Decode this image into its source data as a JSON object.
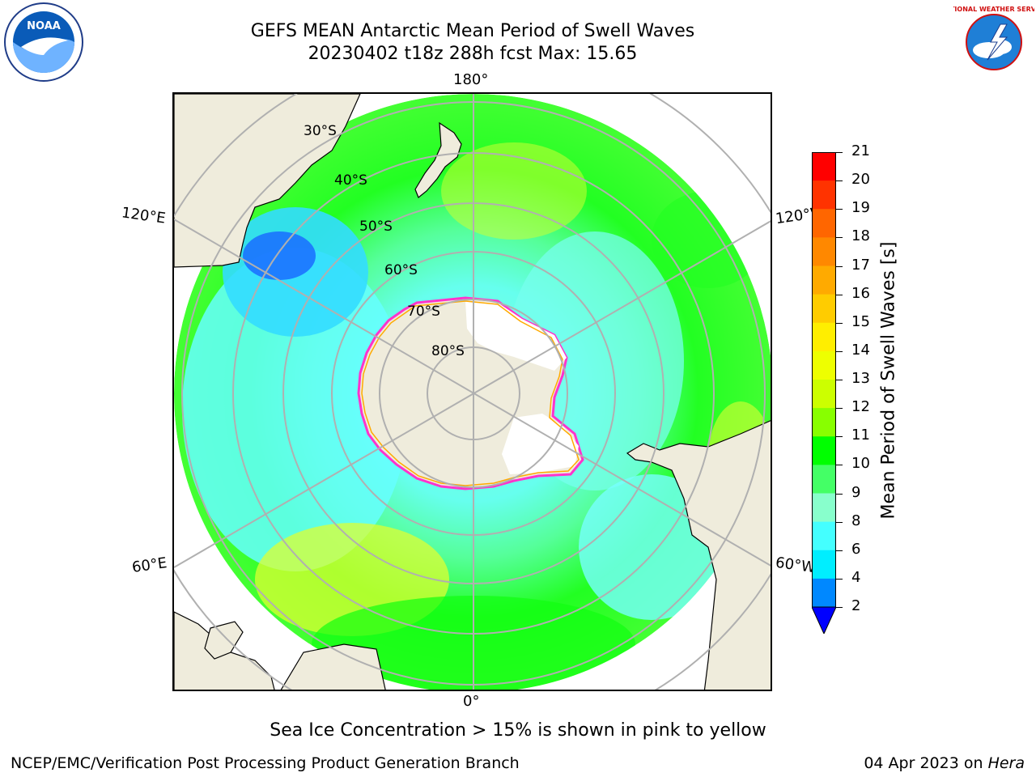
{
  "header": {
    "title_line1": "GEFS MEAN Antarctic Mean Period of Swell Waves",
    "title_line2": "20230402 t18z 288h fcst   Max: 15.65"
  },
  "logos": {
    "left": {
      "icon": "noaa-logo",
      "text": "NOAA"
    },
    "right": {
      "icon": "nws-logo",
      "text": "NATIONAL WEATHER SERVICE"
    }
  },
  "map": {
    "projection": "south-polar-stereographic",
    "longitude_labels": {
      "top": "180°",
      "bottom": "0°",
      "upper_left": "120°E",
      "upper_right": "120°W",
      "lower_left": "60°E",
      "lower_right": "60°W"
    },
    "latitude_labels": [
      "30°S",
      "40°S",
      "50°S",
      "60°S",
      "70°S",
      "80°S"
    ],
    "colors": {
      "land": "#efecdc",
      "antarctic_ice_sheet": "#ffffff",
      "grid": "#b0b0b0",
      "sea_ice_edge": [
        "#ff33cc",
        "#ffaa00"
      ]
    }
  },
  "colorbar": {
    "label": "Mean Period of Swell Waves [s]",
    "ticks": [
      "21",
      "20",
      "19",
      "18",
      "17",
      "16",
      "15",
      "14",
      "13",
      "12",
      "11",
      "10",
      "9",
      "8",
      "6",
      "4",
      "2"
    ],
    "colors_top_to_bottom": [
      "#ff0000",
      "#ff3300",
      "#ff6600",
      "#ff8800",
      "#ffaa00",
      "#ffcc00",
      "#ffee00",
      "#eeff00",
      "#ccff00",
      "#88ff00",
      "#00ff00",
      "#44ff66",
      "#88ffcc",
      "#44ffff",
      "#00eeff",
      "#0088ff"
    ],
    "extend_color": "#0000ff"
  },
  "notes": {
    "sea_ice": "Sea Ice Concentration > 15% is shown in pink to yellow"
  },
  "footer": {
    "left": "NCEP/EMC/Verification Post Processing Product Generation Branch",
    "date": "04 Apr 2023 on ",
    "host": "Hera"
  }
}
